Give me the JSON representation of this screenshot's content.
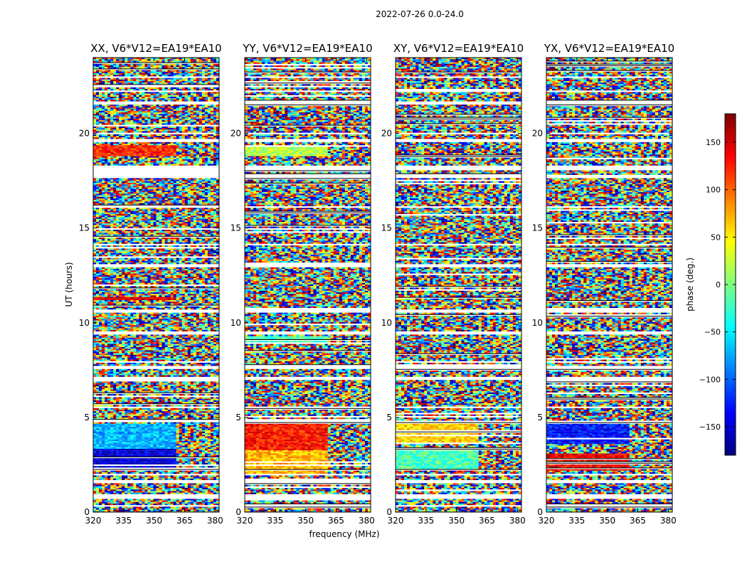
{
  "figure": {
    "suptitle": "2022-07-26 0.0-24.0",
    "xlabel": "frequency (MHz)",
    "ylabel": "UT (hours)"
  },
  "colorbar": {
    "label": "phase (deg.)",
    "range": [
      -180,
      180
    ],
    "ticks": [
      150,
      100,
      50,
      0,
      -50,
      -100,
      -150
    ],
    "tick_labels": [
      "150",
      "100",
      "50",
      "0",
      "−50",
      "−100",
      "−150"
    ],
    "colormap": "jet",
    "colors": [
      "#00007f",
      "#0000ff",
      "#007fff",
      "#00ffff",
      "#7fff7f",
      "#ffff00",
      "#ff7f00",
      "#ff0000",
      "#7f0000"
    ]
  },
  "chart_data": [
    {
      "type": "heatmap",
      "title": "XX, V6*V12=EA19*EA10",
      "xlim": [
        320,
        382
      ],
      "xticks": [
        320,
        335,
        350,
        365,
        380
      ],
      "ylim": [
        0,
        24
      ],
      "yticks": [
        0,
        5,
        10,
        15,
        20
      ],
      "blank_rows_hours": [
        [
          0.3,
          0.45
        ],
        [
          0.7,
          0.95
        ],
        [
          1.6,
          1.75
        ],
        [
          2.0,
          2.1
        ],
        [
          4.75,
          4.85
        ],
        [
          5.55,
          5.65
        ],
        [
          7.0,
          7.2
        ],
        [
          7.6,
          7.75
        ],
        [
          9.45,
          9.55
        ],
        [
          10.6,
          10.7
        ],
        [
          13.0,
          13.1
        ],
        [
          14.1,
          14.2
        ],
        [
          16.1,
          16.2
        ],
        [
          17.7,
          17.85
        ],
        [
          18.1,
          18.3
        ],
        [
          19.6,
          19.75
        ],
        [
          20.0,
          20.1
        ],
        [
          20.55,
          20.6
        ],
        [
          21.55,
          21.75
        ],
        [
          22.2,
          22.3
        ],
        [
          23.0,
          23.05
        ]
      ],
      "smooth_bands_hours": [
        [
          2.2,
          3.4,
          -150
        ],
        [
          3.4,
          4.7,
          -70
        ],
        [
          11.2,
          11.4,
          150
        ],
        [
          18.8,
          19.4,
          120
        ]
      ]
    },
    {
      "type": "heatmap",
      "title": "YY, V6*V12=EA19*EA10",
      "xlim": [
        320,
        382
      ],
      "xticks": [
        320,
        335,
        350,
        365,
        380
      ],
      "ylim": [
        0,
        24
      ],
      "yticks": [
        0,
        5,
        10,
        15,
        20
      ],
      "blank_rows_hours": [
        [
          0.3,
          0.45
        ],
        [
          0.7,
          0.95
        ],
        [
          1.6,
          1.75
        ],
        [
          2.0,
          2.1
        ],
        [
          4.75,
          4.85
        ],
        [
          5.55,
          5.65
        ],
        [
          7.0,
          7.2
        ],
        [
          7.6,
          7.75
        ],
        [
          9.45,
          9.55
        ],
        [
          10.6,
          10.7
        ],
        [
          13.0,
          13.1
        ],
        [
          14.1,
          14.2
        ],
        [
          16.1,
          16.2
        ],
        [
          17.7,
          17.85
        ],
        [
          18.1,
          18.3
        ],
        [
          19.6,
          19.75
        ],
        [
          20.0,
          20.1
        ],
        [
          20.55,
          20.6
        ],
        [
          21.55,
          21.75
        ],
        [
          22.2,
          22.3
        ],
        [
          23.0,
          23.05
        ]
      ],
      "smooth_bands_hours": [
        [
          2.0,
          3.3,
          70
        ],
        [
          3.3,
          4.7,
          130
        ],
        [
          8.9,
          9.3,
          -20
        ],
        [
          18.8,
          19.4,
          20
        ]
      ]
    },
    {
      "type": "heatmap",
      "title": "XY, V6*V12=EA19*EA10",
      "xlim": [
        320,
        382
      ],
      "xticks": [
        320,
        335,
        350,
        365,
        380
      ],
      "ylim": [
        0,
        24
      ],
      "yticks": [
        0,
        5,
        10,
        15,
        20
      ],
      "blank_rows_hours": [
        [
          0.3,
          0.45
        ],
        [
          0.7,
          0.95
        ],
        [
          1.6,
          1.75
        ],
        [
          2.0,
          2.1
        ],
        [
          4.75,
          4.85
        ],
        [
          5.55,
          5.65
        ],
        [
          7.0,
          7.2
        ],
        [
          7.6,
          7.75
        ],
        [
          9.45,
          9.55
        ],
        [
          10.6,
          10.7
        ],
        [
          13.0,
          13.1
        ],
        [
          14.1,
          14.2
        ],
        [
          16.1,
          16.2
        ],
        [
          17.7,
          17.85
        ],
        [
          18.1,
          18.3
        ],
        [
          19.6,
          19.75
        ],
        [
          20.0,
          20.1
        ],
        [
          20.55,
          20.6
        ],
        [
          21.55,
          21.75
        ],
        [
          22.2,
          22.3
        ],
        [
          23.0,
          23.05
        ]
      ],
      "smooth_bands_hours": [
        [
          2.2,
          3.3,
          -20
        ],
        [
          3.6,
          4.7,
          60
        ]
      ]
    },
    {
      "type": "heatmap",
      "title": "YX, V6*V12=EA19*EA10",
      "xlim": [
        320,
        382
      ],
      "xticks": [
        320,
        335,
        350,
        365,
        380
      ],
      "ylim": [
        0,
        24
      ],
      "yticks": [
        0,
        5,
        10,
        15,
        20
      ],
      "blank_rows_hours": [
        [
          0.3,
          0.45
        ],
        [
          0.7,
          0.95
        ],
        [
          1.6,
          1.75
        ],
        [
          2.0,
          2.1
        ],
        [
          4.75,
          4.85
        ],
        [
          5.55,
          5.65
        ],
        [
          7.0,
          7.2
        ],
        [
          7.6,
          7.75
        ],
        [
          9.45,
          9.55
        ],
        [
          10.6,
          10.7
        ],
        [
          13.0,
          13.1
        ],
        [
          14.1,
          14.2
        ],
        [
          16.1,
          16.2
        ],
        [
          17.7,
          17.85
        ],
        [
          18.1,
          18.3
        ],
        [
          19.6,
          19.75
        ],
        [
          20.0,
          20.1
        ],
        [
          20.55,
          20.6
        ],
        [
          21.55,
          21.75
        ],
        [
          22.2,
          22.3
        ],
        [
          23.0,
          23.05
        ]
      ],
      "smooth_bands_hours": [
        [
          2.2,
          3.1,
          140
        ],
        [
          3.6,
          4.7,
          -130
        ]
      ]
    }
  ]
}
